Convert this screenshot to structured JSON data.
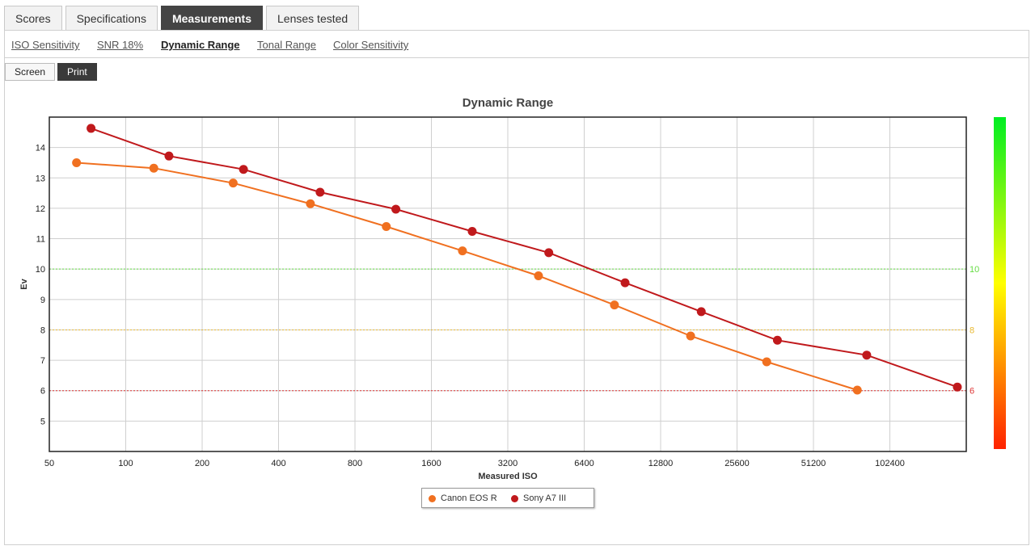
{
  "tabs": [
    {
      "label": "Scores",
      "active": false
    },
    {
      "label": "Specifications",
      "active": false
    },
    {
      "label": "Measurements",
      "active": true
    },
    {
      "label": "Lenses tested",
      "active": false
    }
  ],
  "subnav": [
    {
      "label": "ISO Sensitivity",
      "active": false
    },
    {
      "label": "SNR 18%",
      "active": false
    },
    {
      "label": "Dynamic Range",
      "active": true
    },
    {
      "label": "Tonal Range",
      "active": false
    },
    {
      "label": "Color Sensitivity",
      "active": false
    }
  ],
  "modes": [
    {
      "label": "Screen",
      "active": false
    },
    {
      "label": "Print",
      "active": true
    }
  ],
  "chart_data": {
    "type": "line",
    "title": "Dynamic Range",
    "xlabel": "Measured ISO",
    "ylabel": "Ev",
    "x_scale": "log2",
    "x_ticks": [
      50,
      100,
      200,
      400,
      800,
      1600,
      3200,
      6400,
      12800,
      25600,
      51200,
      102400
    ],
    "y_ticks": [
      5,
      6,
      7,
      8,
      9,
      10,
      11,
      12,
      13,
      14
    ],
    "xlim": [
      50,
      204800
    ],
    "ylim": [
      4,
      15
    ],
    "grid": true,
    "legend_position": "bottom-center",
    "reference_lines": [
      {
        "y": 10,
        "label": "10",
        "color": "#66dd44"
      },
      {
        "y": 8,
        "label": "8",
        "color": "#e8b830"
      },
      {
        "y": 6,
        "label": "6",
        "color": "#dd3333"
      }
    ],
    "series": [
      {
        "name": "Canon EOS R",
        "color": "#f07020",
        "x": [
          64,
          129,
          265,
          534,
          1063,
          2121,
          4227,
          8419,
          16804,
          33505,
          76209
        ],
        "y": [
          13.5,
          13.32,
          12.83,
          12.15,
          11.4,
          10.6,
          9.78,
          8.82,
          7.8,
          6.95,
          6.02
        ]
      },
      {
        "name": "Sony A7 III",
        "color": "#c0191c",
        "x": [
          73,
          148,
          291,
          583,
          1159,
          2317,
          4641,
          9272,
          18508,
          36923,
          83011,
          188870
        ],
        "y": [
          14.63,
          13.72,
          13.28,
          12.53,
          11.97,
          11.24,
          10.54,
          9.55,
          8.6,
          7.66,
          7.17,
          6.12
        ]
      }
    ],
    "colorbar": {
      "colors": [
        "#00ee22",
        "#ffff00",
        "#ff2200"
      ]
    }
  }
}
